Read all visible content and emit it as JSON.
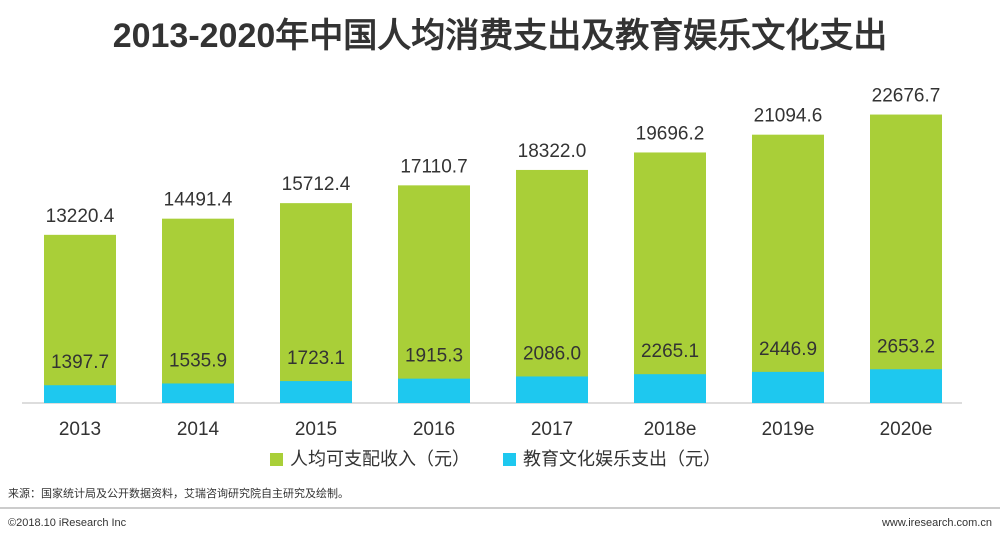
{
  "chart_data": {
    "type": "bar",
    "title": "2013-2020年中国人均消费支出及教育娱乐文化支出",
    "categories": [
      "2013",
      "2014",
      "2015",
      "2016",
      "2017",
      "2018e",
      "2019e",
      "2020e"
    ],
    "series": [
      {
        "name": "人均可支配收入（元）",
        "color": "#a9cf38",
        "values": [
          13220.4,
          14491.4,
          15712.4,
          17110.7,
          18322.0,
          19696.2,
          21094.6,
          22676.7
        ],
        "value_labels": [
          "13220.4",
          "14491.4",
          "15712.4",
          "17110.7",
          "18322.0",
          "19696.2",
          "21094.6",
          "22676.7"
        ]
      },
      {
        "name": "教育文化娱乐支出（元）",
        "color": "#1ec8ef",
        "values": [
          1397.7,
          1535.9,
          1723.1,
          1915.3,
          2086.0,
          2265.1,
          2446.9,
          2653.2
        ],
        "value_labels": [
          "1397.7",
          "1535.9",
          "1723.1",
          "1915.3",
          "2086.0",
          "2265.1",
          "2446.9",
          "2653.2"
        ]
      }
    ],
    "ylim": [
      0,
      25000
    ],
    "legend": "bottom"
  },
  "footer": {
    "source": "来源：国家统计局及公开数据资料，艾瑞咨询研究院自主研究及绘制。",
    "copyright": "©2018.10 iResearch Inc",
    "website": "www.iresearch.com.cn"
  }
}
